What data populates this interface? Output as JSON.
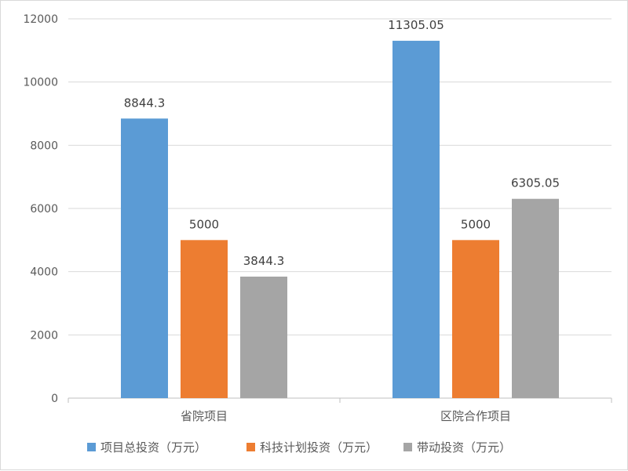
{
  "chart_data": {
    "type": "bar",
    "categories": [
      "省院项目",
      "区院合作项目"
    ],
    "series": [
      {
        "name": "项目总投资（万元）",
        "values": [
          8844.3,
          11305.05
        ],
        "labels": [
          "8844.3",
          "11305.05"
        ],
        "color": "#5b9bd5"
      },
      {
        "name": "科技计划投资（万元）",
        "values": [
          5000,
          5000
        ],
        "labels": [
          "5000",
          "5000"
        ],
        "color": "#ed7d31"
      },
      {
        "name": "带动投资（万元）",
        "values": [
          3844.3,
          6305.05
        ],
        "labels": [
          "3844.3",
          "6305.05"
        ],
        "color": "#a5a5a5"
      }
    ],
    "yticks": [
      "0",
      "2000",
      "4000",
      "6000",
      "8000",
      "10000",
      "12000"
    ],
    "ylim": [
      0,
      12000
    ],
    "grid": true,
    "legend": "bottom"
  }
}
